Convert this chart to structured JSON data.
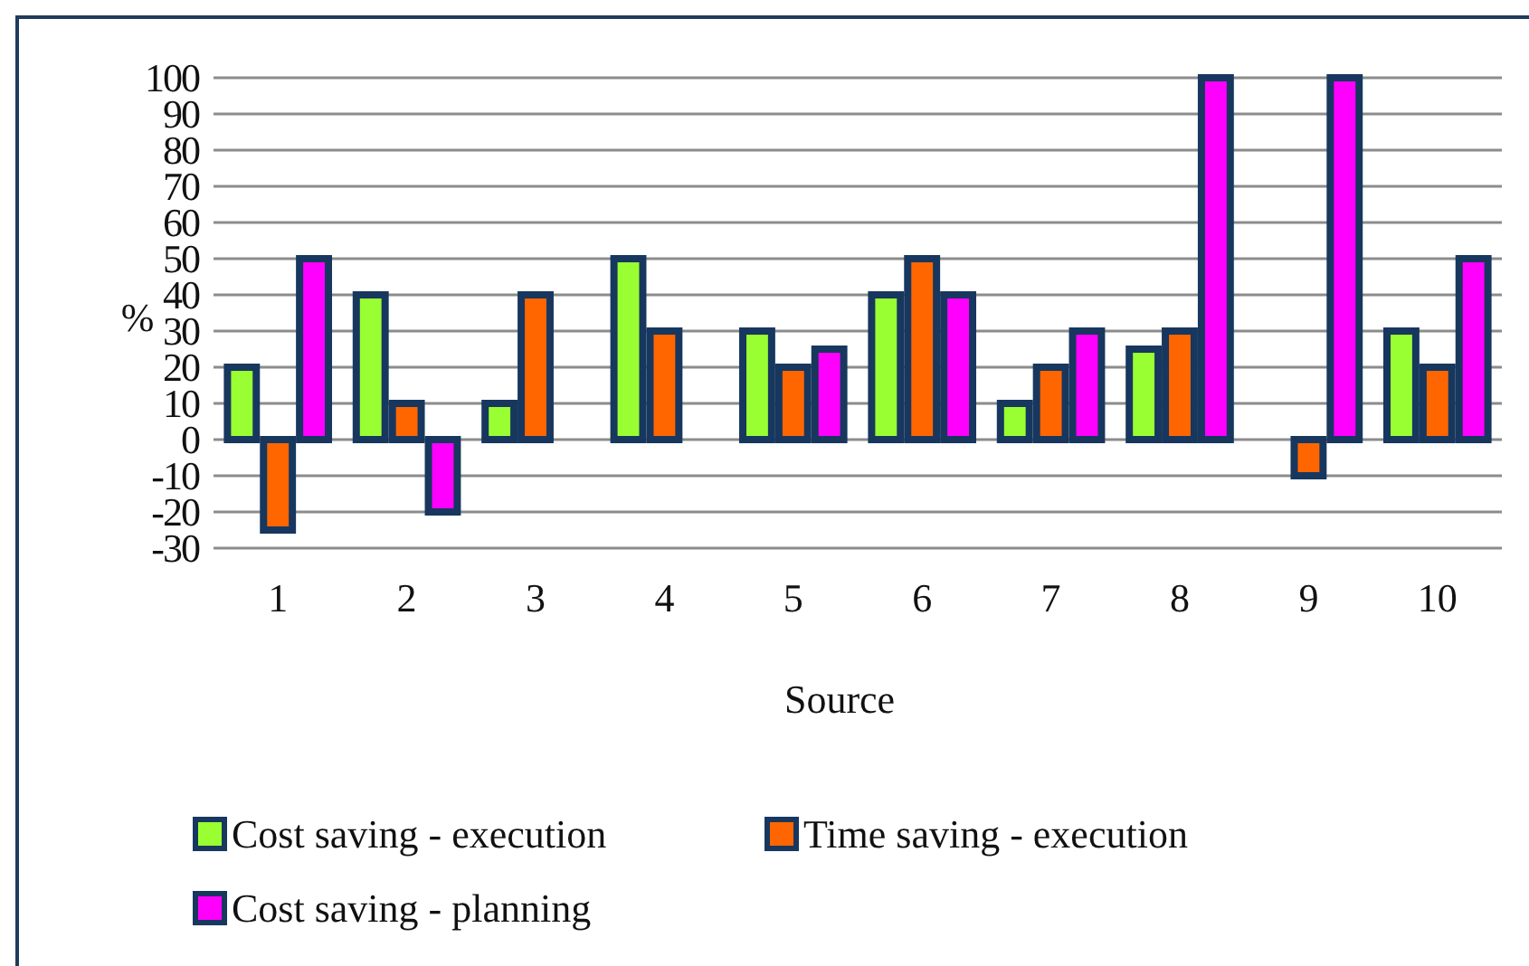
{
  "chart_data": {
    "type": "bar",
    "xlabel": "Source",
    "ylabel": "%",
    "categories": [
      "1",
      "2",
      "3",
      "4",
      "5",
      "6",
      "7",
      "8",
      "9",
      "10"
    ],
    "series": [
      {
        "name": "Cost saving - execution",
        "color": "#99ff33",
        "values": [
          20,
          40,
          10,
          50,
          30,
          40,
          10,
          25,
          null,
          30
        ]
      },
      {
        "name": "Time saving - execution",
        "color": "#ff6600",
        "values": [
          -25,
          10,
          40,
          30,
          20,
          50,
          20,
          30,
          -10,
          20
        ]
      },
      {
        "name": "Cost saving - planning",
        "color": "#ff00ff",
        "values": [
          50,
          -20,
          null,
          null,
          25,
          40,
          30,
          100,
          100,
          50
        ]
      }
    ],
    "ylim": [
      -30,
      100
    ],
    "yticks": [
      -30,
      -20,
      -10,
      0,
      10,
      20,
      30,
      40,
      50,
      60,
      70,
      80,
      90,
      100
    ],
    "grid": "y",
    "legend": "bottom"
  }
}
